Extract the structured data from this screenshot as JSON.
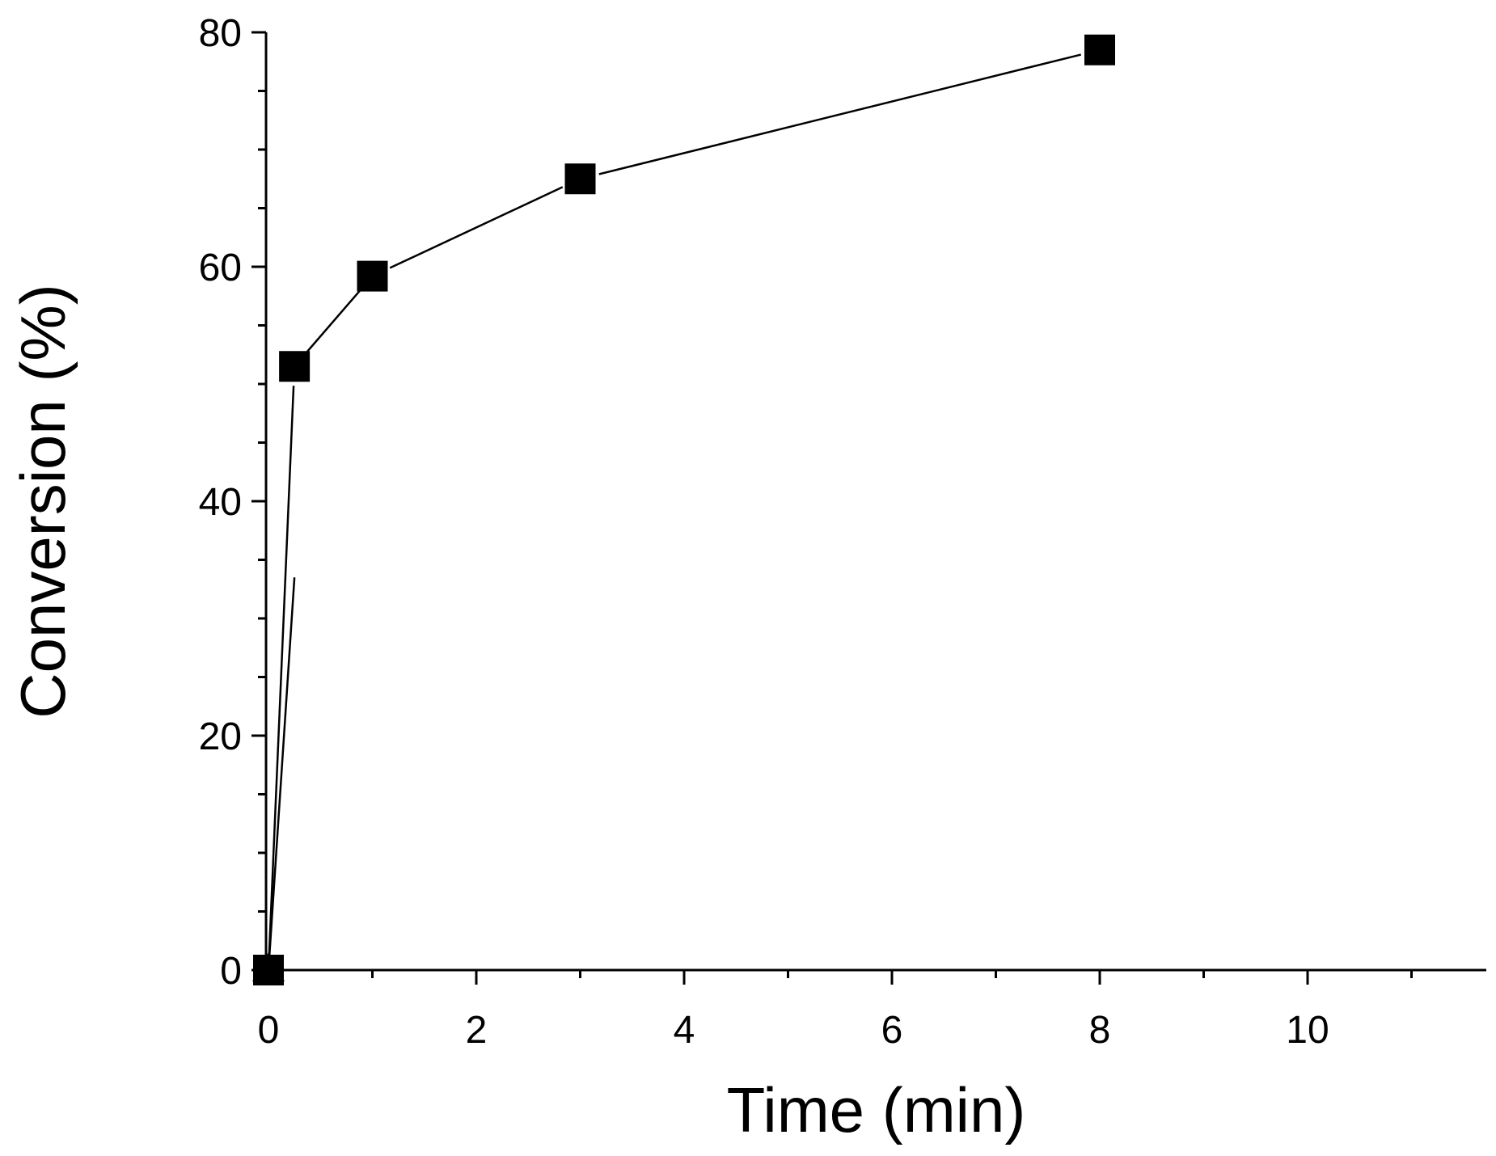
{
  "chart_data": {
    "type": "line",
    "title": "",
    "xlabel": "Time (min)",
    "ylabel": "Conversion (%)",
    "xlim": [
      -0.1,
      11.6
    ],
    "ylim": [
      0,
      80
    ],
    "x_ticks": [
      0,
      2,
      4,
      6,
      8,
      10
    ],
    "x_tick_labels": [
      "0",
      "2",
      "4",
      "6",
      "8",
      "10"
    ],
    "x_minor_ticks": [
      1,
      3,
      5,
      7,
      9,
      11
    ],
    "y_ticks": [
      0,
      20,
      40,
      60,
      80
    ],
    "y_tick_labels": [
      "0",
      "20",
      "40",
      "60",
      "80"
    ],
    "y_minor_ticks": [
      5,
      10,
      15,
      25,
      30,
      35,
      45,
      50,
      55,
      65,
      70,
      75
    ],
    "grid": false,
    "series": [
      {
        "marker": "square",
        "color": "#000000",
        "x": [
          0,
          0.25,
          1,
          3,
          8
        ],
        "y": [
          0,
          51.5,
          59.2,
          67.5,
          78.5
        ]
      },
      {
        "marker": "triangle",
        "color": "#000000",
        "x": [
          0,
          0.25
        ],
        "y": [
          0,
          33.5
        ]
      }
    ]
  }
}
